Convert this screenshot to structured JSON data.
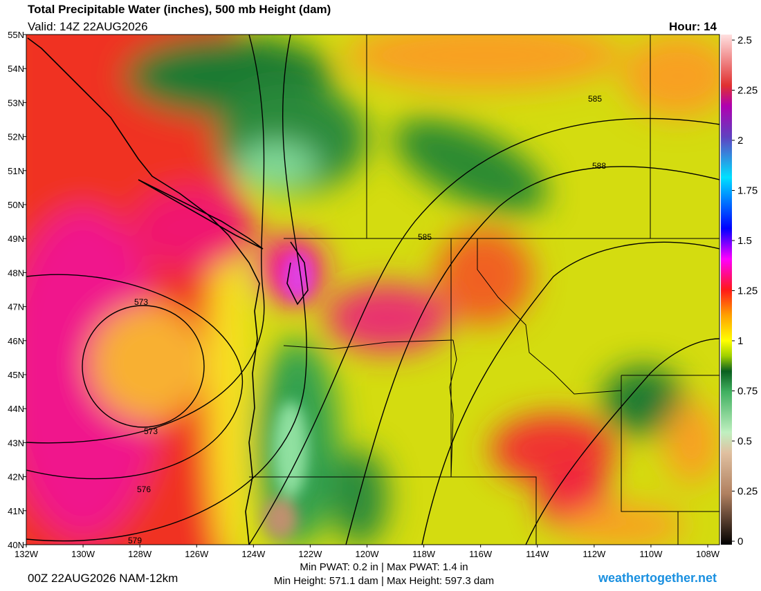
{
  "header": {
    "title": "Total Precipitable Water (inches), 500 mb Height (dam)",
    "valid": "Valid: 14Z 22AUG2026",
    "hour": "Hour: 14"
  },
  "map": {
    "lat_ticks": [
      {
        "value": 55,
        "label": "55N"
      },
      {
        "value": 54,
        "label": "54N"
      },
      {
        "value": 53,
        "label": "53N"
      },
      {
        "value": 52,
        "label": "52N"
      },
      {
        "value": 51,
        "label": "51N"
      },
      {
        "value": 50,
        "label": "50N"
      },
      {
        "value": 49,
        "label": "49N"
      },
      {
        "value": 48,
        "label": "48N"
      },
      {
        "value": 47,
        "label": "47N"
      },
      {
        "value": 46,
        "label": "46N"
      },
      {
        "value": 45,
        "label": "45N"
      },
      {
        "value": 44,
        "label": "44N"
      },
      {
        "value": 43,
        "label": "43N"
      },
      {
        "value": 42,
        "label": "42N"
      },
      {
        "value": 41,
        "label": "41N"
      },
      {
        "value": 40,
        "label": "40N"
      }
    ],
    "lon_ticks": [
      {
        "value": -132,
        "label": "132W"
      },
      {
        "value": -130,
        "label": "130W"
      },
      {
        "value": -128,
        "label": "128W"
      },
      {
        "value": -126,
        "label": "126W"
      },
      {
        "value": -124,
        "label": "124W"
      },
      {
        "value": -122,
        "label": "122W"
      },
      {
        "value": -120,
        "label": "120W"
      },
      {
        "value": -118,
        "label": "118W"
      },
      {
        "value": -116,
        "label": "116W"
      },
      {
        "value": -114,
        "label": "114W"
      },
      {
        "value": -112,
        "label": "112W"
      },
      {
        "value": -110,
        "label": "110W"
      },
      {
        "value": -108,
        "label": "108W"
      }
    ],
    "contour_labels": [
      573,
      573,
      576,
      579,
      585,
      585,
      588
    ]
  },
  "colorbar": {
    "ticks": [
      0,
      0.25,
      0.5,
      0.75,
      1,
      1.25,
      1.5,
      1.75,
      2,
      2.25,
      2.5
    ]
  },
  "footer": {
    "run": "00Z 22AUG2026 NAM-12km",
    "pwat": "Min PWAT:   0.2 in | Max PWAT:   1.4 in",
    "height": "Min Height: 571.1 dam | Max Height: 597.3 dam",
    "credit": "weathertogether.net"
  }
}
